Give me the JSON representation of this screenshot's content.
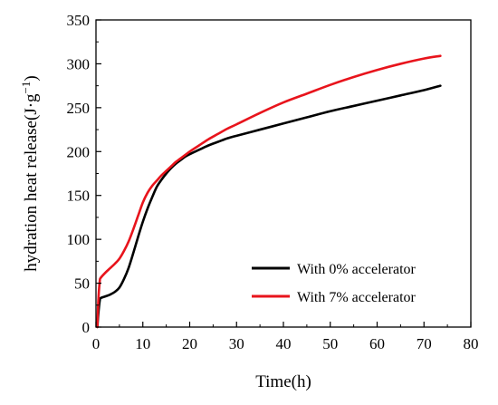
{
  "chart_data": {
    "type": "line",
    "title": "",
    "xlabel": "Time(h)",
    "ylabel": "hydration heat release(J·g",
    "ylabel_sup": "−1",
    "ylabel_close": ")",
    "xlim": [
      0,
      80
    ],
    "ylim": [
      0,
      350
    ],
    "xticks": [
      0,
      10,
      20,
      30,
      40,
      50,
      60,
      70,
      80
    ],
    "yticks": [
      0,
      50,
      100,
      150,
      200,
      250,
      300,
      350
    ],
    "grid": false,
    "legend_position": "bottom-right",
    "series": [
      {
        "name": "With 0% accelerator",
        "color": "#000000",
        "x": [
          0.3,
          0.5,
          0.8,
          1,
          2,
          3,
          4,
          5,
          6,
          7,
          8,
          9,
          10,
          11,
          12,
          13,
          14,
          15,
          16,
          17,
          18,
          19,
          20,
          22,
          24,
          26,
          28,
          30,
          35,
          40,
          45,
          50,
          55,
          60,
          65,
          70,
          73.5
        ],
        "y": [
          0,
          15,
          30,
          33,
          35,
          37,
          40,
          45,
          55,
          68,
          85,
          103,
          120,
          135,
          148,
          160,
          168,
          175,
          181,
          186,
          190,
          194,
          197,
          202,
          207,
          211,
          215,
          218,
          225,
          232,
          239,
          246,
          252,
          258,
          264,
          270,
          275
        ]
      },
      {
        "name": "With 7% accelerator",
        "color": "#e8141c",
        "x": [
          0.3,
          0.5,
          0.8,
          1,
          2,
          3,
          4,
          5,
          6,
          7,
          8,
          9,
          10,
          11,
          12,
          13,
          14,
          15,
          16,
          17,
          18,
          19,
          20,
          22,
          24,
          26,
          28,
          30,
          35,
          40,
          45,
          50,
          55,
          60,
          65,
          70,
          73.5
        ],
        "y": [
          0,
          30,
          52,
          56,
          62,
          67,
          72,
          78,
          87,
          98,
          112,
          127,
          142,
          153,
          161,
          167,
          173,
          178,
          183,
          188,
          192,
          196,
          200,
          207,
          214,
          220,
          226,
          231,
          244,
          256,
          266,
          276,
          285,
          293,
          300,
          306,
          309
        ]
      }
    ]
  }
}
